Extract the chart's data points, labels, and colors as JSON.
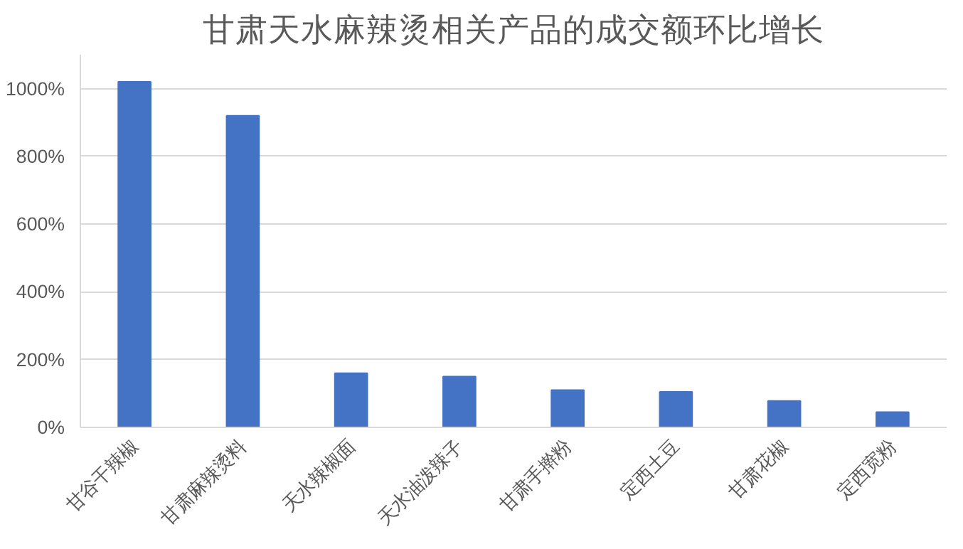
{
  "chart_data": {
    "type": "bar",
    "title": "甘肃天水麻辣烫相关产品的成交额环比增长",
    "categories": [
      "甘谷干辣椒",
      "甘肃麻辣烫料",
      "天水辣椒面",
      "天水油泼辣子",
      "甘肃手擀粉",
      "定西土豆",
      "甘肃花椒",
      "定西宽粉"
    ],
    "values": [
      1020,
      920,
      160,
      150,
      110,
      105,
      78,
      45
    ],
    "color": "#4472c4",
    "ylim": [
      0,
      1100
    ],
    "yticks": [
      {
        "value": 0,
        "label": "0%"
      },
      {
        "value": 200,
        "label": "200%"
      },
      {
        "value": 400,
        "label": "400%"
      },
      {
        "value": 600,
        "label": "600%"
      },
      {
        "value": 800,
        "label": "800%"
      },
      {
        "value": 1000,
        "label": "1000%"
      }
    ],
    "grid": "y"
  }
}
